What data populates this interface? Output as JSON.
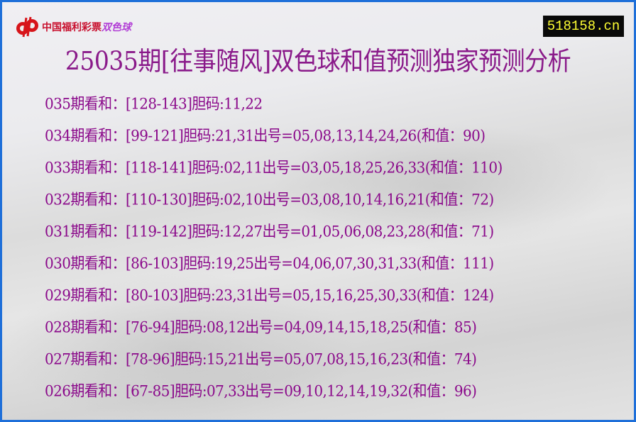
{
  "logo": {
    "text": "中国福利彩票",
    "sub": "双色球"
  },
  "site": "518158.cn",
  "title": "25035期[往事随风]双色球和值预测独家预测分析",
  "rows": [
    "035期看和：[128-143]胆码:11,22",
    "034期看和：[99-121]胆码:21,31出号=05,08,13,14,24,26(和值：90)",
    "033期看和：[118-141]胆码:02,11出号=03,05,18,25,26,33(和值：110)",
    "032期看和：[110-130]胆码:02,10出号=03,08,10,14,16,21(和值：72)",
    "031期看和：[119-142]胆码:12,27出号=01,05,06,08,23,28(和值：71)",
    "030期看和：[86-103]胆码:19,25出号=04,06,07,30,31,33(和值：111)",
    "029期看和：[80-103]胆码:23,31出号=05,15,16,25,30,33(和值：124)",
    "028期看和：[76-94]胆码:08,12出号=04,09,14,15,18,25(和值：85)",
    "027期看和：[78-96]胆码:15,21出号=05,07,08,15,16,23(和值：74)",
    "026期看和：[67-85]胆码:07,33出号=09,10,12,14,19,32(和值：96)"
  ],
  "colors": {
    "border": "#1e6fd9",
    "text": "#8b0a8b",
    "site_bg": "#0a0a0a",
    "site_text": "#ffff33",
    "logo_red": "#c8102e"
  }
}
